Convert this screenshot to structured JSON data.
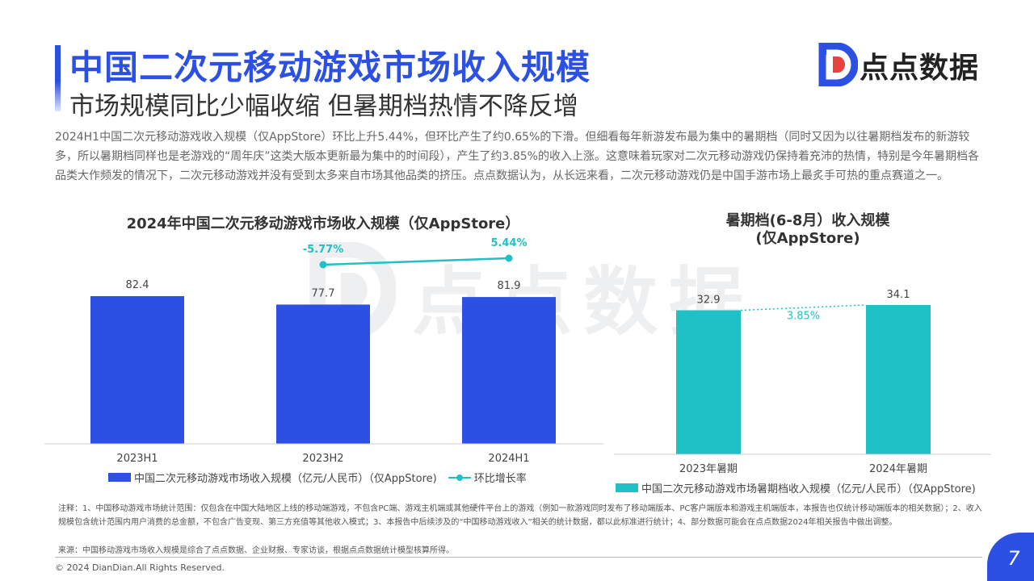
{
  "header": {
    "title": "中国二次元移动游戏市场收入规模",
    "subtitle": "市场规模同比少幅收缩 但暑期档热情不降反增"
  },
  "brand": {
    "logo_text": "点点数据",
    "watermark_text": "点点数据",
    "logo_icon": "dd-logo-icon",
    "colors": {
      "primary": "#2b50e3",
      "accent": "#e8423f",
      "teal": "#1fc1c6"
    }
  },
  "intro": "2024H1中国二次元移动游戏收入规模（仅AppStore）环比上升5.44%，但环比产生了约0.65%的下滑。但细看每年新游发布最为集中的暑期档（同时又因为以往暑期档发布的新游较多，所以暑期档同样也是老游戏的“周年庆”这类大版本更新最为集中的时间段），产生了约3.85%的收入上涨。这意味着玩家对二次元移动游戏仍保持着充沛的热情，特别是今年暑期档各品类大作频发的情况下，二次元移动游戏并没有受到太多来自市场其他品类的挤压。点点数据认为，从长远来看，二次元移动游戏仍是中国手游市场上最炙手可热的重点赛道之一。",
  "chart_data": [
    {
      "type": "bar",
      "title": "2024年中国二次元移动游戏市场收入规模（仅AppStore）",
      "categories": [
        "2023H1",
        "2023H2",
        "2024H1"
      ],
      "series": [
        {
          "name": "中国二次元移动游戏市场收入规模（亿元/人民币）（仅AppStore)",
          "type": "bar",
          "color": "#2b50e3",
          "values": [
            82.4,
            77.7,
            81.9
          ]
        },
        {
          "name": "环比增长率",
          "type": "line",
          "color": "#1fc1c6",
          "values": [
            null,
            -5.77,
            5.44
          ],
          "labels": [
            null,
            "-5.77%",
            "5.44%"
          ]
        }
      ],
      "ylim": [
        0,
        82.4
      ],
      "legend_position": "bottom",
      "grid": false
    },
    {
      "type": "bar",
      "title_line1": "暑期档(6-8月）收入规模",
      "title_line2": "(仅AppStore)",
      "categories": [
        "2023年暑期",
        "2024年暑期"
      ],
      "series": [
        {
          "name": "中国二次元移动游戏市场暑期档收入规模（亿元/人民币）（仅AppStore)",
          "color": "#1fc1c6",
          "values": [
            32.9,
            34.1
          ]
        }
      ],
      "annotation": "3.85%",
      "ylim": [
        0,
        34.1
      ],
      "legend_position": "bottom",
      "grid": false
    }
  ],
  "notes": "注释：1、中国移动游戏市场统计范围：仅包含在中国大陆地区上线的移动端游戏，不包含PC端、游戏主机端或其他硬件平台上的游戏（例如一款游戏同时发布了移动端版本、PC客户端版本和游戏主机端版本，本报告也仅统计移动端版本的相关数据）；2、收入规模包含统计范围内用户消费的总金额，不包含广告变现、第三方充值等其他收入模式；3、本报告中后续涉及的“中国移动游戏收入”相关的统计数据，都以此标准进行统计；4、部分数据可能会在点点数据2024年相关报告中做出调整。",
  "source": "来源：中国移动游戏市场收入规模是综合了点点数据、企业财报、专家访谈，根据点点数据统计模型核算所得。",
  "footer": {
    "copyright": "© 2024 DianDian.All Rights Reserved.",
    "page": "7"
  }
}
